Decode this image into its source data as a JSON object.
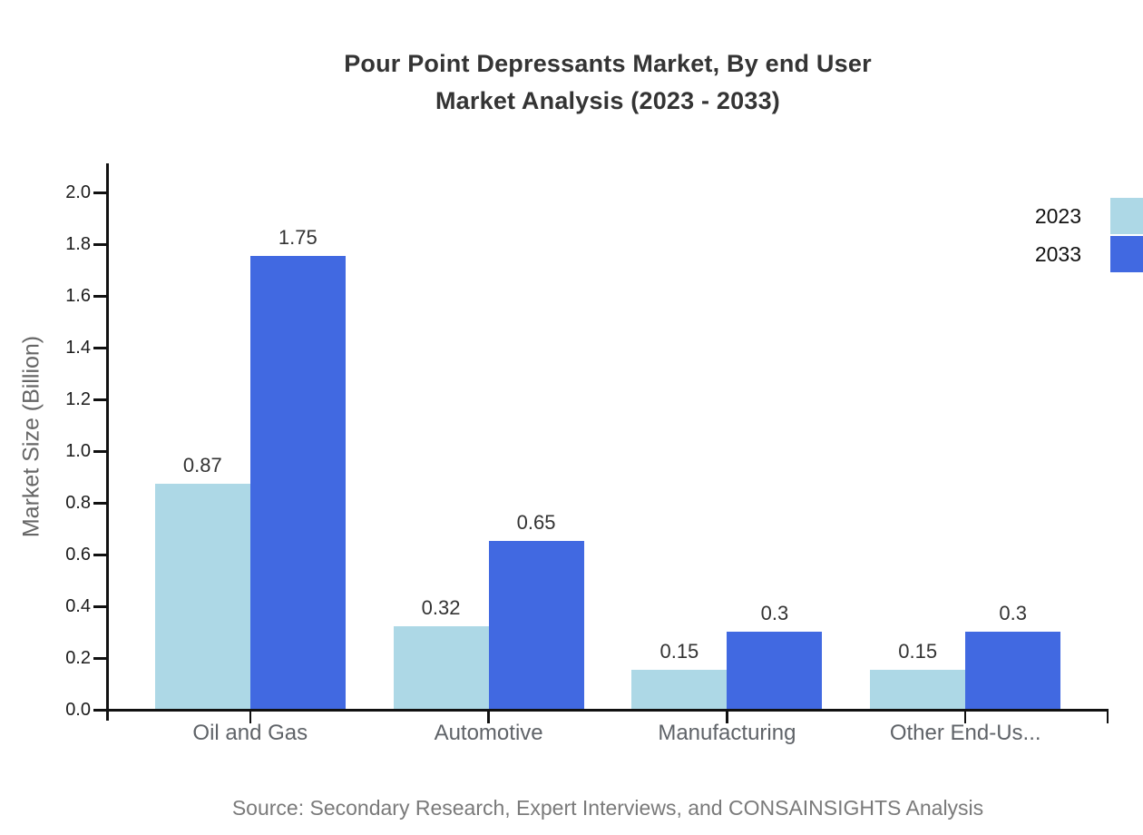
{
  "title": {
    "line1": "Pour Point Depressants Market, By end User",
    "line2": "Market Analysis (2023 - 2033)"
  },
  "source": "Source: Secondary Research, Expert Interviews, and CONSAINSIGHTS Analysis",
  "chart_data": {
    "type": "bar",
    "title": "Pour Point Depressants Market, By end User Market Analysis (2023 - 2033)",
    "categories": [
      "Oil and Gas",
      "Automotive",
      "Manufacturing",
      "Other End-Us..."
    ],
    "series": [
      {
        "name": "2023",
        "color": "#ADD8E6",
        "values": [
          0.87,
          0.32,
          0.15,
          0.15
        ]
      },
      {
        "name": "2033",
        "color": "#4169E1",
        "values": [
          1.75,
          0.65,
          0.3,
          0.3
        ]
      }
    ],
    "xlabel": "",
    "ylabel": "Market Size (Billion)",
    "ylim": [
      0,
      2.0
    ],
    "ytick_step": 0.2,
    "grid": false,
    "legend_position": "top-right",
    "value_labels_shown": true,
    "colors": {
      "axis": "#111111",
      "tick_label": "#1b1b1b",
      "category_label": "#5f6368",
      "value_label": "#333333",
      "title": "#343434",
      "source": "#7a7a7a",
      "background": "#ffffff"
    }
  }
}
